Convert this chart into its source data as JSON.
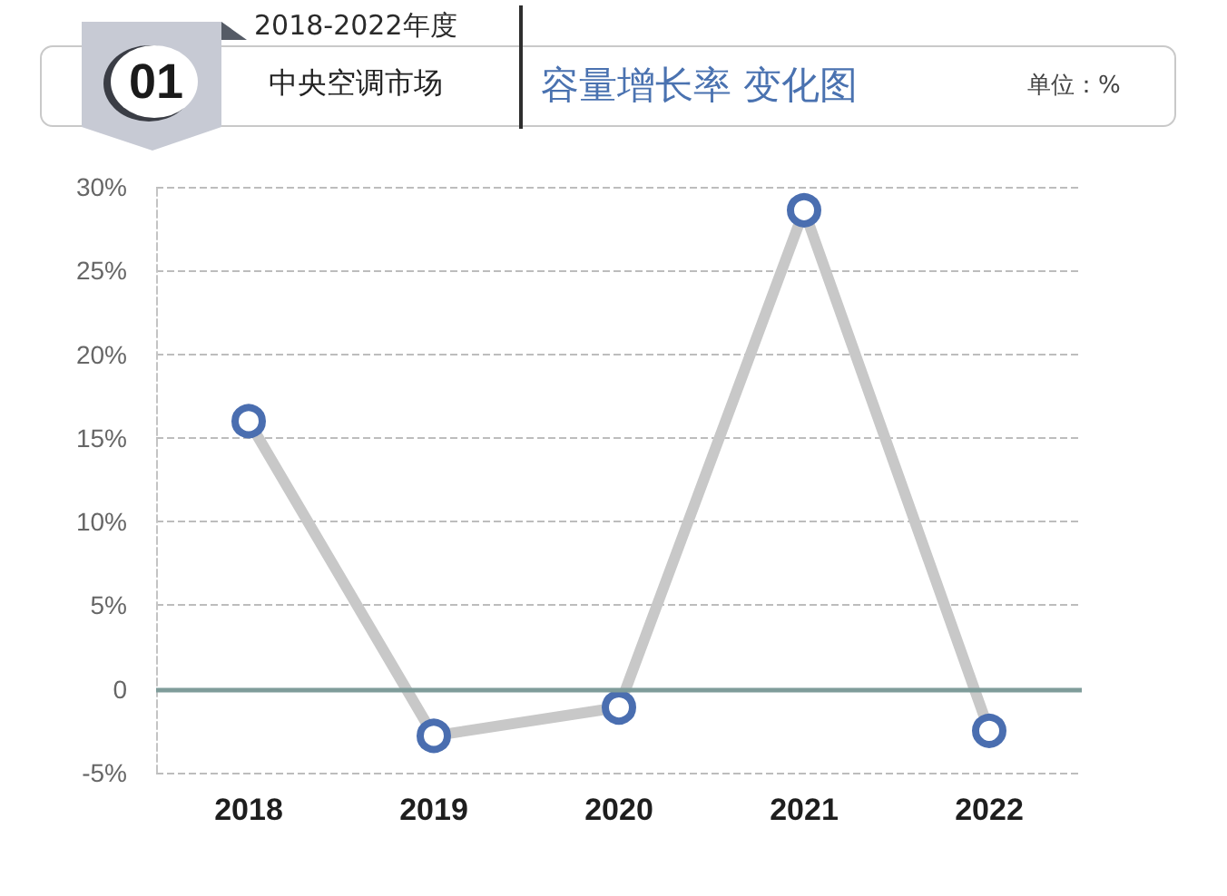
{
  "chart_data": {
    "type": "line",
    "title": "容量增长率 变化图",
    "subtitle": "中央空调市场",
    "annotations": [
      "2018-2022年度",
      "01",
      "单位：%"
    ],
    "categories": [
      "2018",
      "2019",
      "2020",
      "2021",
      "2022"
    ],
    "series": [
      {
        "color": "#c8c8c8",
        "values": [
          16,
          -2.8,
          -1.1,
          28.6,
          -2.5
        ]
      }
    ],
    "colors": [
      "#4a6eb0",
      "#4a6eb0",
      "#4a6eb0",
      "#4a6eb0",
      "#4a6eb0"
    ],
    "ylim": [
      -5,
      30
    ],
    "yticks": [
      {
        "value": -5,
        "label": "-5%"
      },
      0,
      {
        "value": 5,
        "label": "5%"
      },
      {
        "value": 10,
        "label": "10%"
      },
      {
        "value": 15,
        "label": "15%"
      },
      {
        "value": 20,
        "label": "20%"
      },
      {
        "value": 25,
        "label": "25%"
      },
      {
        "value": 30,
        "label": "30%"
      }
    ],
    "ref_lines": [
      {
        "axis": "y",
        "value": 0,
        "color": "#7f9c9a",
        "line_style": "solid"
      }
    ],
    "grid": "y",
    "marker": "circle",
    "line_style": "solid"
  }
}
